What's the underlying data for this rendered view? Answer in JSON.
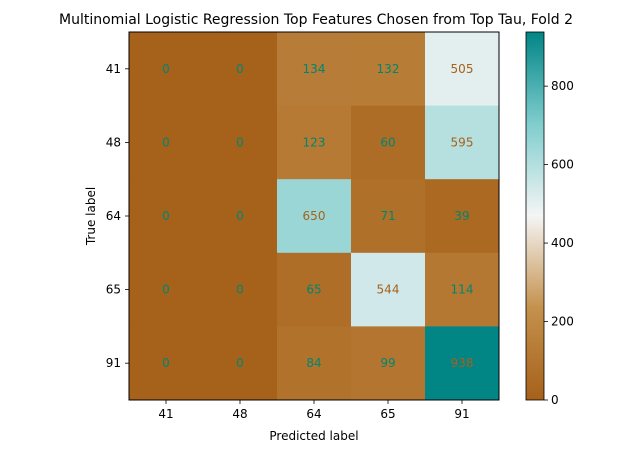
{
  "chart_data": {
    "type": "heatmap",
    "title": "Multinomial Logistic Regression Top Features Chosen from Top Tau, Fold 2",
    "xlabel": "Predicted label",
    "ylabel": "True label",
    "x_categories": [
      "41",
      "48",
      "64",
      "65",
      "91"
    ],
    "y_categories": [
      "41",
      "48",
      "64",
      "65",
      "91"
    ],
    "values": [
      [
        0,
        0,
        134,
        132,
        505
      ],
      [
        0,
        0,
        123,
        60,
        595
      ],
      [
        0,
        0,
        650,
        71,
        39
      ],
      [
        0,
        0,
        65,
        544,
        114
      ],
      [
        0,
        0,
        84,
        99,
        938
      ]
    ],
    "colorbar": {
      "colormap": "BrBG",
      "range": [
        0,
        938
      ],
      "ticks": [
        "0",
        "200",
        "400",
        "600",
        "800"
      ]
    },
    "colors": {
      "low": "#a6611a",
      "mid": "#f5f5f5",
      "high": "#018571",
      "text_on_dark": "#a6611a",
      "text_on_light": "#018571"
    },
    "grid": false
  }
}
